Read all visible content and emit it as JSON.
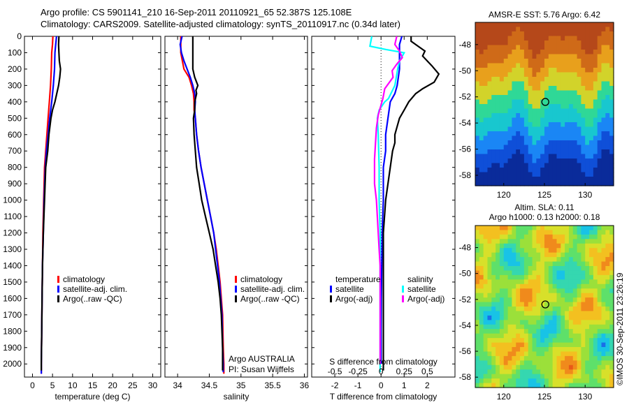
{
  "header": {
    "line1": "Argo profile: CS 5901141_210 16-Sep-2011 20110921_65 52.387S 125.108E",
    "line2": "Climatology: CARS2009. Satellite-adjusted climatology: synTS_20110917.nc (0.34d later)"
  },
  "colors": {
    "climatology": "#ff0000",
    "satellite": "#0000ff",
    "argo": "#000000",
    "satellite_salinity": "#00ffff",
    "argo_salinity": "#ff00ff"
  },
  "chart_data": [
    {
      "type": "line",
      "id": "temperature",
      "xlabel": "temperature (deg C)",
      "xticks": [
        0,
        5,
        10,
        15,
        20,
        25,
        30
      ],
      "xlim": [
        -2,
        32
      ],
      "yticks": [
        0,
        100,
        200,
        300,
        400,
        500,
        600,
        700,
        800,
        900,
        1000,
        1100,
        1200,
        1300,
        1400,
        1500,
        1600,
        1700,
        1800,
        1900,
        2000
      ],
      "ylim": [
        0,
        2080
      ],
      "legend": [
        "climatology",
        "satellite-adj. clim.",
        "Argo(..raw -QC)"
      ],
      "series": [
        {
          "name": "climatology",
          "color": "#ff0000",
          "points": [
            [
              5.1,
              0
            ],
            [
              5.0,
              50
            ],
            [
              4.8,
              100
            ],
            [
              4.7,
              200
            ],
            [
              4.5,
              300
            ],
            [
              4.2,
              400
            ],
            [
              3.9,
              500
            ],
            [
              3.6,
              600
            ],
            [
              3.3,
              700
            ],
            [
              3.0,
              800
            ],
            [
              2.8,
              1000
            ],
            [
              2.6,
              1200
            ],
            [
              2.5,
              1400
            ],
            [
              2.4,
              1600
            ],
            [
              2.3,
              1800
            ],
            [
              2.2,
              2000
            ],
            [
              2.2,
              2060
            ]
          ]
        },
        {
          "name": "satellite-adj. clim.",
          "color": "#0000ff",
          "points": [
            [
              6.0,
              0
            ],
            [
              5.8,
              50
            ],
            [
              5.6,
              100
            ],
            [
              5.5,
              200
            ],
            [
              5.2,
              300
            ],
            [
              4.8,
              400
            ],
            [
              4.3,
              500
            ],
            [
              3.9,
              600
            ],
            [
              3.5,
              700
            ],
            [
              3.2,
              800
            ],
            [
              2.9,
              1000
            ],
            [
              2.7,
              1200
            ],
            [
              2.5,
              1400
            ],
            [
              2.4,
              1600
            ],
            [
              2.3,
              1800
            ],
            [
              2.2,
              2000
            ],
            [
              2.2,
              2060
            ]
          ]
        },
        {
          "name": "Argo(..raw -QC)",
          "color": "#000000",
          "points": [
            [
              6.6,
              0
            ],
            [
              6.5,
              50
            ],
            [
              6.6,
              100
            ],
            [
              6.7,
              150
            ],
            [
              7.0,
              200
            ],
            [
              6.8,
              250
            ],
            [
              6.5,
              300
            ],
            [
              5.6,
              400
            ],
            [
              5.0,
              450
            ],
            [
              4.6,
              500
            ],
            [
              4.1,
              600
            ],
            [
              3.8,
              700
            ],
            [
              3.3,
              800
            ],
            [
              3.0,
              1000
            ],
            [
              2.7,
              1200
            ],
            [
              2.5,
              1400
            ],
            [
              2.4,
              1600
            ],
            [
              2.3,
              1800
            ],
            [
              2.2,
              2000
            ],
            [
              2.2,
              2040
            ]
          ]
        }
      ]
    },
    {
      "type": "line",
      "id": "salinity",
      "xlabel": "salinity",
      "xticks": [
        34,
        34.5,
        35,
        35.5,
        36
      ],
      "xlim": [
        33.8,
        36.05
      ],
      "ylim": [
        0,
        2080
      ],
      "legend": [
        "climatology",
        "satellite-adj. clim.",
        "Argo(..raw -QC)"
      ],
      "annotation": [
        "Argo AUSTRALIA",
        "PI: Susan Wijffels"
      ],
      "series": [
        {
          "name": "climatology",
          "color": "#ff0000",
          "points": [
            [
              34.05,
              0
            ],
            [
              34.05,
              100
            ],
            [
              34.1,
              200
            ],
            [
              34.18,
              250
            ],
            [
              34.22,
              300
            ],
            [
              34.25,
              350
            ],
            [
              34.26,
              400
            ],
            [
              34.26,
              450
            ],
            [
              34.28,
              500
            ],
            [
              34.3,
              600
            ],
            [
              34.33,
              700
            ],
            [
              34.37,
              800
            ],
            [
              34.42,
              900
            ],
            [
              34.47,
              1000
            ],
            [
              34.52,
              1100
            ],
            [
              34.57,
              1200
            ],
            [
              34.61,
              1300
            ],
            [
              34.64,
              1400
            ],
            [
              34.67,
              1500
            ],
            [
              34.69,
              1600
            ],
            [
              34.71,
              1700
            ],
            [
              34.72,
              1900
            ],
            [
              34.73,
              2000
            ],
            [
              34.73,
              2060
            ]
          ]
        },
        {
          "name": "satellite-adj. clim.",
          "color": "#0000ff",
          "points": [
            [
              34.07,
              0
            ],
            [
              34.04,
              50
            ],
            [
              34.06,
              100
            ],
            [
              34.1,
              150
            ],
            [
              34.15,
              200
            ],
            [
              34.2,
              250
            ],
            [
              34.24,
              300
            ],
            [
              34.27,
              350
            ],
            [
              34.28,
              400
            ],
            [
              34.27,
              450
            ],
            [
              34.28,
              500
            ],
            [
              34.3,
              600
            ],
            [
              34.33,
              700
            ],
            [
              34.37,
              800
            ],
            [
              34.42,
              900
            ],
            [
              34.47,
              1000
            ],
            [
              34.52,
              1100
            ],
            [
              34.57,
              1200
            ],
            [
              34.6,
              1300
            ],
            [
              34.63,
              1400
            ],
            [
              34.66,
              1500
            ],
            [
              34.68,
              1600
            ],
            [
              34.7,
              1700
            ],
            [
              34.71,
              1900
            ],
            [
              34.72,
              2000
            ],
            [
              34.72,
              2050
            ]
          ]
        },
        {
          "name": "Argo(..raw -QC)",
          "color": "#000000",
          "points": [
            [
              34.24,
              0
            ],
            [
              34.24,
              100
            ],
            [
              34.24,
              200
            ],
            [
              34.27,
              250
            ],
            [
              34.32,
              300
            ],
            [
              34.29,
              330
            ],
            [
              34.3,
              350
            ],
            [
              34.27,
              400
            ],
            [
              34.27,
              450
            ],
            [
              34.25,
              500
            ],
            [
              34.26,
              600
            ],
            [
              34.28,
              700
            ],
            [
              34.3,
              800
            ],
            [
              34.34,
              900
            ],
            [
              34.38,
              1000
            ],
            [
              34.44,
              1100
            ],
            [
              34.5,
              1200
            ],
            [
              34.56,
              1300
            ],
            [
              34.6,
              1400
            ],
            [
              34.64,
              1500
            ],
            [
              34.67,
              1600
            ],
            [
              34.69,
              1700
            ],
            [
              34.7,
              1800
            ],
            [
              34.71,
              1900
            ],
            [
              34.71,
              2000
            ],
            [
              34.71,
              2040
            ]
          ]
        }
      ]
    },
    {
      "type": "line",
      "id": "difference",
      "xlabel": "T difference from climatology",
      "top_label": "S difference from climatology",
      "xticks": [
        -2,
        -1,
        0,
        1,
        2
      ],
      "xlim": [
        -3,
        3.2
      ],
      "sticks": [
        -0.5,
        -0.25,
        0,
        0.25,
        0.5
      ],
      "sticklabels": [
        "-0.5",
        "-0.25",
        "0",
        "0.25",
        "0.5"
      ],
      "slim": [
        -0.75,
        0.8
      ],
      "ylim": [
        0,
        2080
      ],
      "legend_headers": [
        "temperature",
        "salinity"
      ],
      "legend": [
        "satellite",
        "Argo(-adj)",
        "satellite",
        "Argo(-adj)"
      ],
      "series": [
        {
          "name": "satellite",
          "quantity": "temperature",
          "color": "#0000ff",
          "points": [
            [
              0.9,
              0
            ],
            [
              0.8,
              50
            ],
            [
              0.8,
              100
            ],
            [
              0.8,
              200
            ],
            [
              0.7,
              300
            ],
            [
              0.6,
              350
            ],
            [
              0.4,
              400
            ],
            [
              0.3,
              500
            ],
            [
              0.2,
              600
            ],
            [
              0.2,
              700
            ],
            [
              0.1,
              800
            ],
            [
              0.1,
              1000
            ],
            [
              0.05,
              1200
            ],
            [
              0.03,
              1400
            ],
            [
              0.01,
              1600
            ],
            [
              0.0,
              1800
            ],
            [
              0.0,
              2000
            ]
          ]
        },
        {
          "name": "Argo(-adj)",
          "quantity": "temperature",
          "color": "#000000",
          "points": [
            [
              1.3,
              0
            ],
            [
              1.3,
              30
            ],
            [
              1.6,
              60
            ],
            [
              1.9,
              90
            ],
            [
              1.8,
              120
            ],
            [
              2.0,
              150
            ],
            [
              2.2,
              180
            ],
            [
              2.5,
              230
            ],
            [
              2.3,
              280
            ],
            [
              1.8,
              320
            ],
            [
              1.5,
              350
            ],
            [
              1.2,
              400
            ],
            [
              1.0,
              450
            ],
            [
              0.8,
              500
            ],
            [
              0.7,
              550
            ],
            [
              0.6,
              600
            ],
            [
              0.6,
              650
            ],
            [
              0.5,
              700
            ],
            [
              0.4,
              800
            ],
            [
              0.3,
              900
            ],
            [
              0.2,
              1000
            ],
            [
              0.1,
              1200
            ],
            [
              0.1,
              1400
            ],
            [
              0.1,
              1600
            ],
            [
              0.1,
              1800
            ],
            [
              0.1,
              2000
            ],
            [
              0.1,
              2040
            ]
          ]
        },
        {
          "name": "satellite",
          "quantity": "salinity",
          "color": "#00ffff",
          "points": [
            [
              -0.1,
              0
            ],
            [
              -0.12,
              60
            ],
            [
              0.05,
              80
            ],
            [
              0.25,
              100
            ],
            [
              0.2,
              150
            ],
            [
              0.18,
              200
            ],
            [
              0.15,
              300
            ],
            [
              0.08,
              380
            ],
            [
              0.04,
              400
            ],
            [
              -0.02,
              450
            ],
            [
              -0.04,
              500
            ],
            [
              -0.03,
              600
            ],
            [
              -0.02,
              800
            ],
            [
              -0.02,
              1000
            ],
            [
              -0.01,
              1200
            ],
            [
              -0.01,
              1400
            ],
            [
              -0.01,
              1600
            ],
            [
              -0.01,
              1800
            ],
            [
              -0.01,
              2000
            ],
            [
              -0.01,
              2050
            ]
          ]
        },
        {
          "name": "Argo(-adj)",
          "quantity": "salinity",
          "color": "#ff00ff",
          "points": [
            [
              0.17,
              0
            ],
            [
              0.15,
              50
            ],
            [
              0.2,
              90
            ],
            [
              0.23,
              130
            ],
            [
              0.17,
              170
            ],
            [
              0.12,
              210
            ],
            [
              0.13,
              250
            ],
            [
              0.04,
              320
            ],
            [
              0.02,
              380
            ],
            [
              0.0,
              420
            ],
            [
              -0.03,
              480
            ],
            [
              -0.05,
              560
            ],
            [
              -0.06,
              650
            ],
            [
              -0.07,
              750
            ],
            [
              -0.07,
              900
            ],
            [
              -0.05,
              1000
            ],
            [
              -0.04,
              1100
            ],
            [
              -0.03,
              1200
            ],
            [
              -0.02,
              1300
            ],
            [
              -0.01,
              1400
            ],
            [
              -0.01,
              1600
            ],
            [
              -0.01,
              1800
            ],
            [
              -0.01,
              2000
            ]
          ]
        }
      ]
    },
    {
      "type": "heatmap",
      "id": "sst_map",
      "title": "AMSR-E SST: 5.76 Argo: 6.42",
      "xticks": [
        120,
        125,
        130
      ],
      "xlim": [
        116.5,
        133.5
      ],
      "yticks": [
        -48,
        -50,
        -52,
        -54,
        -56,
        -58
      ],
      "ylim": [
        -58.8,
        -46.3
      ],
      "marker": [
        125.108,
        -52.387
      ],
      "palette": [
        "#0a2b9a",
        "#0f4fd8",
        "#1a86f5",
        "#18c7cf",
        "#2fd897",
        "#d2d32a",
        "#e8a01c",
        "#cf6a18",
        "#b5481a"
      ]
    },
    {
      "type": "heatmap",
      "id": "sla_map",
      "title_line1": "Altim. SLA: 0.11",
      "title_line2": "Argo h1000: 0.13 h2000: 0.18",
      "xticks": [
        120,
        125,
        130
      ],
      "xlim": [
        116.5,
        133.5
      ],
      "yticks": [
        -48,
        -50,
        -52,
        -54,
        -56,
        -58
      ],
      "ylim": [
        -58.8,
        -46.3
      ],
      "marker": [
        125.108,
        -52.387
      ],
      "palette": [
        "#1a6ee8",
        "#18c3e6",
        "#35d7b0",
        "#5ee06a",
        "#9be03a",
        "#d8e02a",
        "#f3c020",
        "#f08a1c",
        "#e85a18"
      ]
    }
  ],
  "footer": {
    "credit": "©IMOS 30-Sep-2011 23:26:19"
  }
}
